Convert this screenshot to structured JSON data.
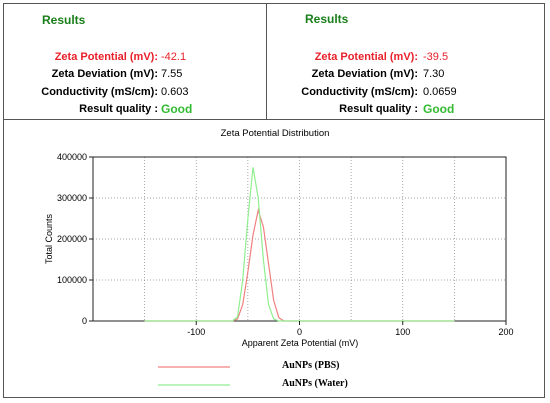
{
  "panels": [
    {
      "title": "Results",
      "rows": [
        {
          "label": "Zeta Potential (mV):",
          "value": "-42.1",
          "style": "red"
        },
        {
          "label": "Zeta Deviation (mV):",
          "value": "7.55",
          "style": "normal"
        },
        {
          "label": "Conductivity (mS/cm):",
          "value": "0.603",
          "style": "normal"
        },
        {
          "label": "Result quality :",
          "value": "Good",
          "style": "quality"
        }
      ]
    },
    {
      "title": "Results",
      "rows": [
        {
          "label": "Zeta Potential (mV):",
          "value": "-39.5",
          "style": "red"
        },
        {
          "label": "Zeta Deviation (mV):",
          "value": "7.30",
          "style": "normal"
        },
        {
          "label": "Conductivity (mS/cm):",
          "value": "0.0659",
          "style": "normal"
        },
        {
          "label": "Result quality :",
          "value": "Good",
          "style": "quality"
        }
      ]
    }
  ],
  "chart_data": {
    "type": "line",
    "title": "Zeta Potential Distribution",
    "xlabel": "Apparent Zeta Potential (mV)",
    "ylabel": "Total Counts",
    "xlim": [
      -200,
      200
    ],
    "ylim": [
      0,
      400000
    ],
    "xticks": [
      -100,
      0,
      100,
      200
    ],
    "xtick_labels": [
      "-100",
      "0",
      "100",
      "200"
    ],
    "yticks": [
      0,
      100000,
      200000,
      300000,
      400000
    ],
    "ytick_labels": [
      "0",
      "100000",
      "200000",
      "300000",
      "400000"
    ],
    "grid": true,
    "legend_position": "bottom",
    "series": [
      {
        "name": "AuNPs (PBS)",
        "color": "#f08080",
        "x": [
          -150,
          -65,
          -60,
          -55,
          -50,
          -45,
          -40,
          -35,
          -30,
          -25,
          -20,
          -15,
          150
        ],
        "y": [
          0,
          0,
          5000,
          40000,
          120000,
          210000,
          270000,
          230000,
          140000,
          50000,
          8000,
          0,
          0
        ]
      },
      {
        "name": "AuNPs (Water)",
        "color": "#90ee90",
        "x": [
          -150,
          -65,
          -60,
          -55,
          -50,
          -45,
          -40,
          -35,
          -30,
          -25,
          -20,
          150
        ],
        "y": [
          0,
          0,
          10000,
          100000,
          250000,
          375000,
          300000,
          150000,
          40000,
          5000,
          0,
          0
        ]
      }
    ]
  }
}
